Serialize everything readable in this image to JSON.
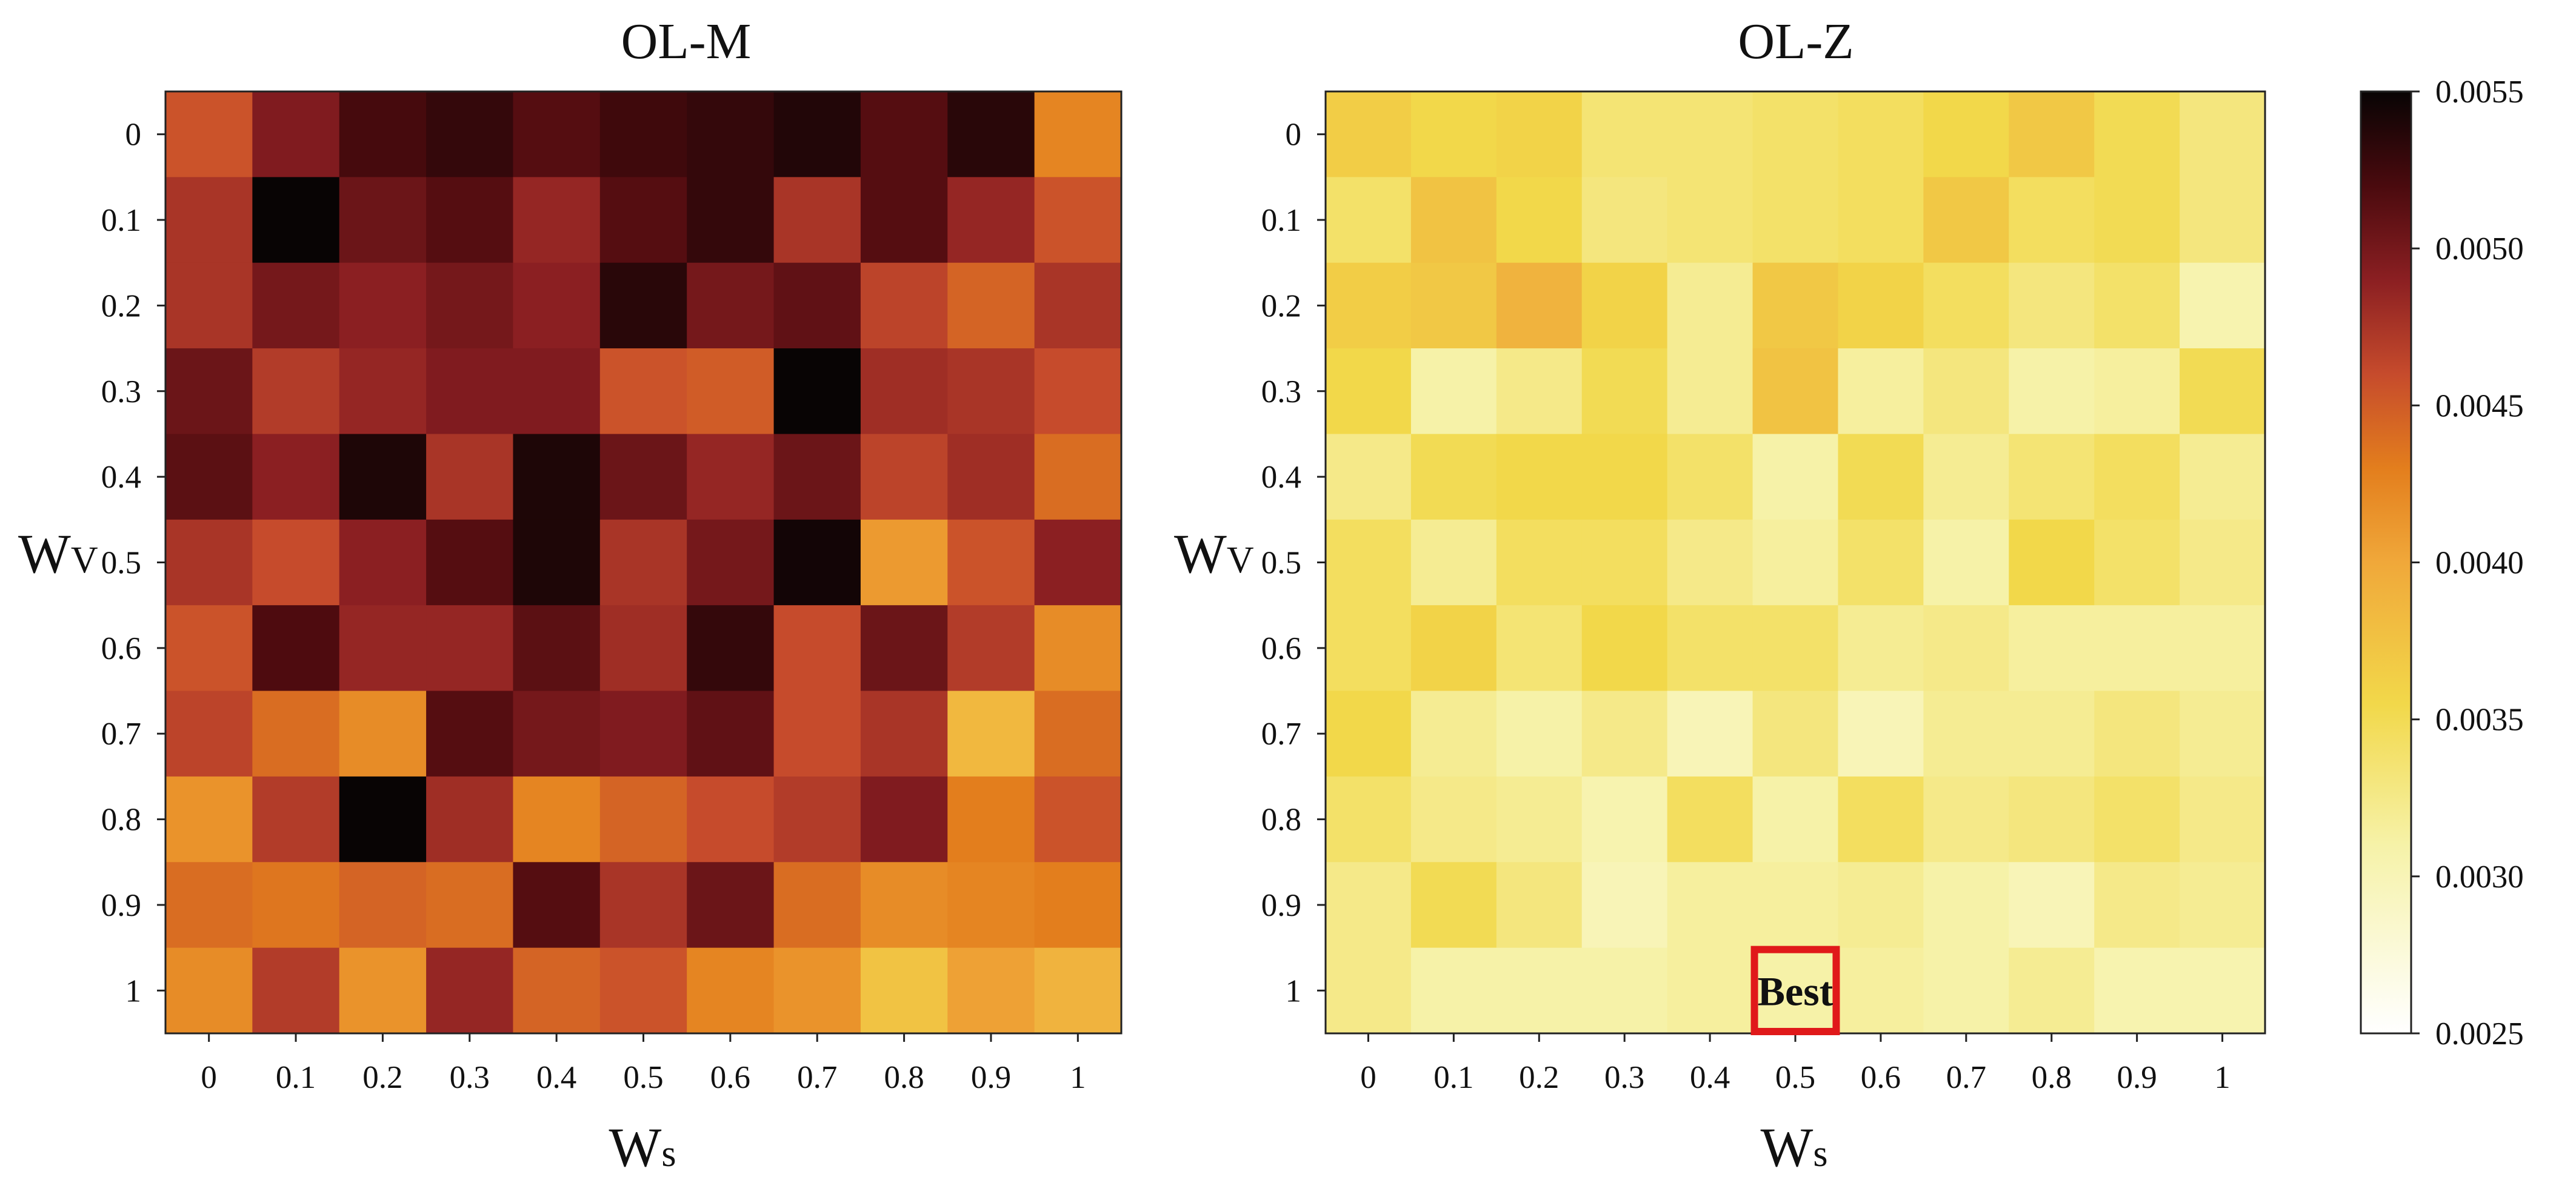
{
  "chart_data": [
    {
      "type": "heatmap",
      "title": "OL-M",
      "xlabel": "Ws",
      "ylabel": "Wv",
      "x_categories": [
        "0",
        "0.1",
        "0.2",
        "0.3",
        "0.4",
        "0.5",
        "0.6",
        "0.7",
        "0.8",
        "0.9",
        "1"
      ],
      "y_categories": [
        "0",
        "0.1",
        "0.2",
        "0.3",
        "0.4",
        "0.5",
        "0.6",
        "0.7",
        "0.8",
        "0.9",
        "1"
      ],
      "values": [
        [
          0.00455,
          0.00495,
          0.00522,
          0.0053,
          0.00515,
          0.00525,
          0.0053,
          0.00538,
          0.00515,
          0.00535,
          0.00425
        ],
        [
          0.00475,
          0.00552,
          0.00505,
          0.00515,
          0.00485,
          0.00515,
          0.0053,
          0.00475,
          0.00515,
          0.00485,
          0.00455
        ],
        [
          0.00475,
          0.005,
          0.0049,
          0.005,
          0.0049,
          0.00535,
          0.005,
          0.0051,
          0.00465,
          0.00445,
          0.00475
        ],
        [
          0.00505,
          0.0047,
          0.00485,
          0.00495,
          0.00495,
          0.00455,
          0.0045,
          0.00552,
          0.0048,
          0.00475,
          0.0046
        ],
        [
          0.00512,
          0.0049,
          0.0054,
          0.00475,
          0.0054,
          0.00505,
          0.00485,
          0.00505,
          0.00465,
          0.0048,
          0.0044
        ],
        [
          0.00475,
          0.0046,
          0.0049,
          0.00515,
          0.0054,
          0.00475,
          0.005,
          0.00545,
          0.0041,
          0.00455,
          0.0049
        ],
        [
          0.00455,
          0.00518,
          0.00485,
          0.00485,
          0.00512,
          0.0048,
          0.0053,
          0.0046,
          0.00505,
          0.0047,
          0.0042
        ],
        [
          0.00465,
          0.0044,
          0.0042,
          0.00515,
          0.005,
          0.00495,
          0.0051,
          0.0046,
          0.00475,
          0.00385,
          0.0044
        ],
        [
          0.00415,
          0.0047,
          0.00552,
          0.0048,
          0.00425,
          0.00445,
          0.0046,
          0.0047,
          0.00495,
          0.0043,
          0.00455
        ],
        [
          0.0044,
          0.00435,
          0.00445,
          0.0044,
          0.00515,
          0.00475,
          0.00505,
          0.0044,
          0.0042,
          0.00425,
          0.0043
        ],
        [
          0.0042,
          0.0047,
          0.00415,
          0.00485,
          0.00445,
          0.00455,
          0.00425,
          0.00415,
          0.00375,
          0.00405,
          0.0039
        ]
      ]
    },
    {
      "type": "heatmap",
      "title": "OL-Z",
      "xlabel": "Ws",
      "ylabel": "Wv",
      "x_categories": [
        "0",
        "0.1",
        "0.2",
        "0.3",
        "0.4",
        "0.5",
        "0.6",
        "0.7",
        "0.8",
        "0.9",
        "1"
      ],
      "y_categories": [
        "0",
        "0.1",
        "0.2",
        "0.3",
        "0.4",
        "0.5",
        "0.6",
        "0.7",
        "0.8",
        "0.9",
        "1"
      ],
      "values": [
        [
          0.00365,
          0.00355,
          0.0036,
          0.00335,
          0.00335,
          0.0034,
          0.00345,
          0.00355,
          0.0037,
          0.0035,
          0.0033
        ],
        [
          0.0034,
          0.00375,
          0.00355,
          0.0033,
          0.00335,
          0.0034,
          0.00345,
          0.0037,
          0.00345,
          0.0035,
          0.0033
        ],
        [
          0.00365,
          0.0037,
          0.0039,
          0.0036,
          0.0032,
          0.0037,
          0.0036,
          0.00345,
          0.0033,
          0.0034,
          0.00305
        ],
        [
          0.00355,
          0.0031,
          0.00325,
          0.0035,
          0.0032,
          0.00375,
          0.00315,
          0.0033,
          0.0031,
          0.00315,
          0.0035
        ],
        [
          0.00325,
          0.0035,
          0.00355,
          0.00355,
          0.0034,
          0.0031,
          0.0035,
          0.0032,
          0.00335,
          0.00345,
          0.0032
        ],
        [
          0.00345,
          0.0032,
          0.00345,
          0.00345,
          0.00325,
          0.00315,
          0.0034,
          0.0031,
          0.00355,
          0.0034,
          0.00325
        ],
        [
          0.00345,
          0.0036,
          0.00335,
          0.00355,
          0.0034,
          0.0034,
          0.0032,
          0.00325,
          0.00315,
          0.00315,
          0.00315
        ],
        [
          0.00355,
          0.0032,
          0.0031,
          0.00325,
          0.003,
          0.0033,
          0.003,
          0.0032,
          0.0032,
          0.0033,
          0.0032
        ],
        [
          0.0034,
          0.00325,
          0.0032,
          0.00305,
          0.00345,
          0.0031,
          0.00345,
          0.00325,
          0.0033,
          0.0034,
          0.00325
        ],
        [
          0.00325,
          0.0035,
          0.0033,
          0.003,
          0.00315,
          0.00315,
          0.0032,
          0.0031,
          0.003,
          0.00325,
          0.0032
        ],
        [
          0.00325,
          0.0031,
          0.0031,
          0.0031,
          0.00315,
          0.0031,
          0.00315,
          0.0031,
          0.0032,
          0.00305,
          0.00305
        ]
      ],
      "annotation": {
        "text": "Best",
        "x": "0.5",
        "y": "1",
        "color": "#e0191a"
      }
    }
  ],
  "colorbar": {
    "colormap": "afmhot_r",
    "min": 0.0025,
    "max": 0.0055,
    "ticks": [
      0.0025,
      0.003,
      0.0035,
      0.004,
      0.0045,
      0.005,
      0.0055
    ],
    "tick_labels": [
      "0.0025",
      "0.0030",
      "0.0035",
      "0.0040",
      "0.0045",
      "0.0050",
      "0.0055"
    ]
  },
  "labels": {
    "ws_main": "W",
    "ws_sub": "s",
    "wv_main": "W",
    "wv_sub": "V"
  }
}
